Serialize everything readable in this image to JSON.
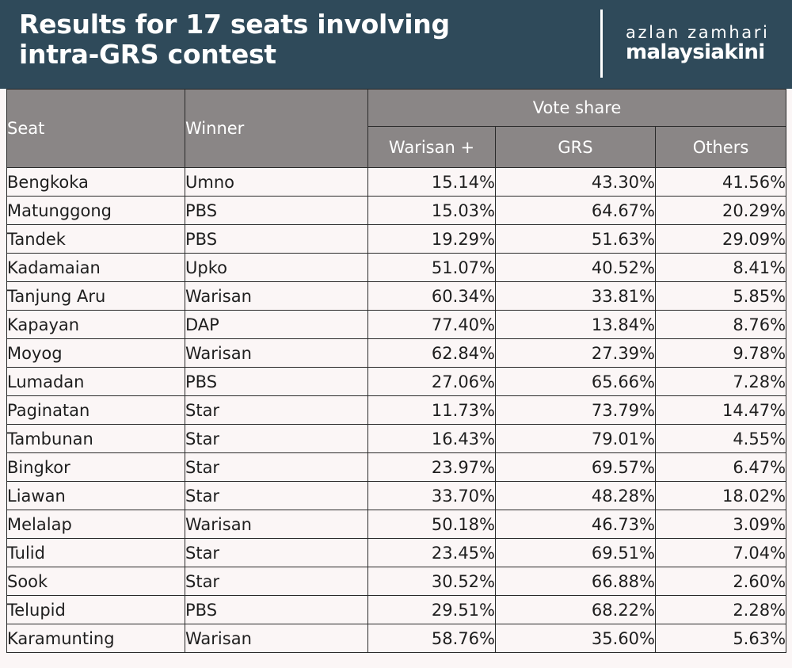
{
  "header": {
    "title_line1": "Results for 17 seats involving",
    "title_line2": "intra-GRS contest",
    "credit": "azlan zamhari",
    "brand": "malaysiakini",
    "background": "#2f4a5a"
  },
  "chart_data": {
    "type": "table",
    "columns": {
      "seat": "Seat",
      "winner": "Winner",
      "vote_share": "Vote share",
      "sub": [
        "Warisan +",
        "GRS",
        "Others"
      ]
    },
    "rows": [
      {
        "seat": "Bengkoka",
        "winner": "Umno",
        "warisan": "15.14%",
        "grs": "43.30%",
        "others": "41.56%"
      },
      {
        "seat": "Matunggong",
        "winner": "PBS",
        "warisan": "15.03%",
        "grs": "64.67%",
        "others": "20.29%"
      },
      {
        "seat": "Tandek",
        "winner": "PBS",
        "warisan": "19.29%",
        "grs": "51.63%",
        "others": "29.09%"
      },
      {
        "seat": "Kadamaian",
        "winner": "Upko",
        "warisan": "51.07%",
        "grs": "40.52%",
        "others": "8.41%"
      },
      {
        "seat": "Tanjung Aru",
        "winner": "Warisan",
        "warisan": "60.34%",
        "grs": "33.81%",
        "others": "5.85%"
      },
      {
        "seat": "Kapayan",
        "winner": "DAP",
        "warisan": "77.40%",
        "grs": "13.84%",
        "others": "8.76%"
      },
      {
        "seat": "Moyog",
        "winner": "Warisan",
        "warisan": "62.84%",
        "grs": "27.39%",
        "others": "9.78%"
      },
      {
        "seat": "Lumadan",
        "winner": "PBS",
        "warisan": "27.06%",
        "grs": "65.66%",
        "others": "7.28%"
      },
      {
        "seat": "Paginatan",
        "winner": "Star",
        "warisan": "11.73%",
        "grs": "73.79%",
        "others": "14.47%"
      },
      {
        "seat": "Tambunan",
        "winner": "Star",
        "warisan": "16.43%",
        "grs": "79.01%",
        "others": "4.55%"
      },
      {
        "seat": "Bingkor",
        "winner": "Star",
        "warisan": "23.97%",
        "grs": "69.57%",
        "others": "6.47%"
      },
      {
        "seat": "Liawan",
        "winner": "Star",
        "warisan": "33.70%",
        "grs": "48.28%",
        "others": "18.02%"
      },
      {
        "seat": "Melalap",
        "winner": "Warisan",
        "warisan": "50.18%",
        "grs": "46.73%",
        "others": "3.09%"
      },
      {
        "seat": "Tulid",
        "winner": "Star",
        "warisan": "23.45%",
        "grs": "69.51%",
        "others": "7.04%"
      },
      {
        "seat": "Sook",
        "winner": "Star",
        "warisan": "30.52%",
        "grs": "66.88%",
        "others": "2.60%"
      },
      {
        "seat": "Telupid",
        "winner": "PBS",
        "warisan": "29.51%",
        "grs": "68.22%",
        "others": "2.28%"
      },
      {
        "seat": "Karamunting",
        "winner": "Warisan",
        "warisan": "58.76%",
        "grs": "35.60%",
        "others": "5.63%"
      }
    ]
  }
}
